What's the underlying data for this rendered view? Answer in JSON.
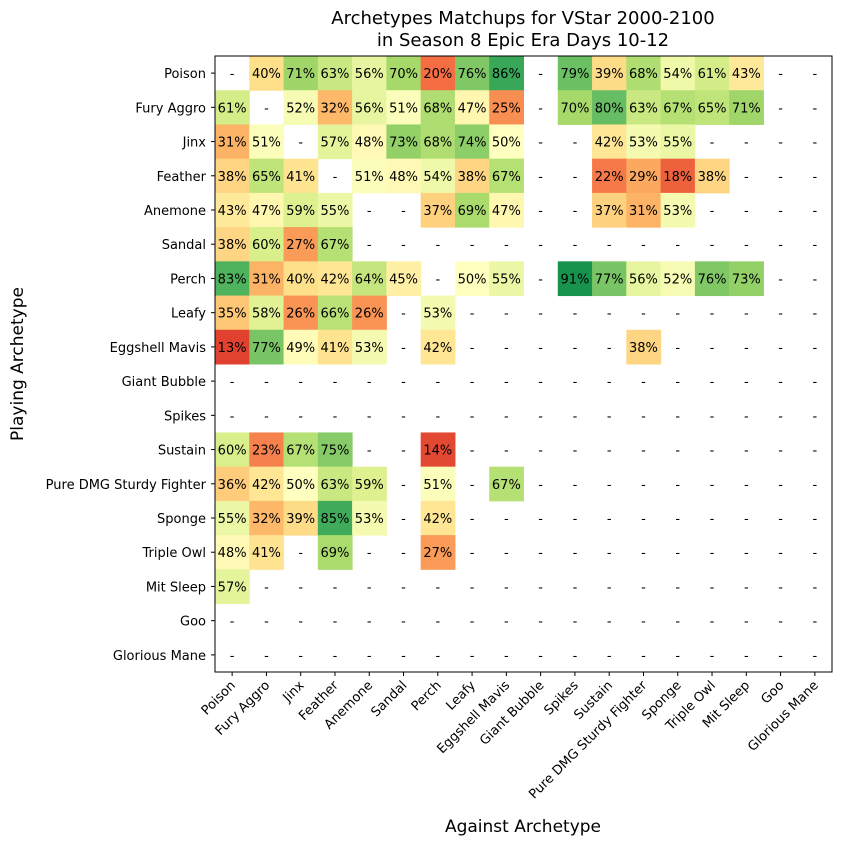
{
  "chart_data": {
    "type": "heatmap",
    "title": [
      "Archetypes Matchups for VStar 2000-2100",
      "in Season 8 Epic Era Days 10-12"
    ],
    "xlabel": "Against Archetype",
    "ylabel": "Playing Archetype",
    "categories": [
      "Poison",
      "Fury Aggro",
      "Jinx",
      "Feather",
      "Anemone",
      "Sandal",
      "Perch",
      "Leafy",
      "Eggshell Mavis",
      "Giant Bubble",
      "Spikes",
      "Sustain",
      "Pure DMG Sturdy Fighter",
      "Sponge",
      "Triple Owl",
      "Mit Sleep",
      "Goo",
      "Glorious Mane"
    ],
    "value_unit": "%",
    "missing_label": "-",
    "colormap": "RdYlGn",
    "color_range": [
      0,
      100
    ],
    "values": [
      [
        null,
        40,
        71,
        63,
        56,
        70,
        20,
        76,
        86,
        null,
        79,
        39,
        68,
        54,
        61,
        43,
        null,
        null
      ],
      [
        61,
        null,
        52,
        32,
        56,
        51,
        68,
        47,
        25,
        null,
        70,
        80,
        63,
        67,
        65,
        71,
        null,
        null
      ],
      [
        31,
        51,
        null,
        57,
        48,
        73,
        68,
        74,
        50,
        null,
        null,
        42,
        53,
        55,
        null,
        null,
        null,
        null
      ],
      [
        38,
        65,
        41,
        null,
        51,
        48,
        54,
        38,
        67,
        null,
        null,
        22,
        29,
        18,
        38,
        null,
        null,
        null
      ],
      [
        43,
        47,
        59,
        55,
        null,
        null,
        37,
        69,
        47,
        null,
        null,
        37,
        31,
        53,
        null,
        null,
        null,
        null
      ],
      [
        38,
        60,
        27,
        67,
        null,
        null,
        null,
        null,
        null,
        null,
        null,
        null,
        null,
        null,
        null,
        null,
        null,
        null
      ],
      [
        83,
        31,
        40,
        42,
        64,
        45,
        null,
        50,
        55,
        null,
        91,
        77,
        56,
        52,
        76,
        73,
        null,
        null
      ],
      [
        35,
        58,
        26,
        66,
        26,
        null,
        53,
        null,
        null,
        null,
        null,
        null,
        null,
        null,
        null,
        null,
        null,
        null
      ],
      [
        13,
        77,
        49,
        41,
        53,
        null,
        42,
        null,
        null,
        null,
        null,
        null,
        38,
        null,
        null,
        null,
        null,
        null
      ],
      [
        null,
        null,
        null,
        null,
        null,
        null,
        null,
        null,
        null,
        null,
        null,
        null,
        null,
        null,
        null,
        null,
        null,
        null
      ],
      [
        null,
        null,
        null,
        null,
        null,
        null,
        null,
        null,
        null,
        null,
        null,
        null,
        null,
        null,
        null,
        null,
        null,
        null
      ],
      [
        60,
        23,
        67,
        75,
        null,
        null,
        14,
        null,
        null,
        null,
        null,
        null,
        null,
        null,
        null,
        null,
        null,
        null
      ],
      [
        36,
        42,
        50,
        63,
        59,
        null,
        51,
        null,
        67,
        null,
        null,
        null,
        null,
        null,
        null,
        null,
        null,
        null
      ],
      [
        55,
        32,
        39,
        85,
        53,
        null,
        42,
        null,
        null,
        null,
        null,
        null,
        null,
        null,
        null,
        null,
        null,
        null
      ],
      [
        48,
        41,
        null,
        69,
        null,
        null,
        27,
        null,
        null,
        null,
        null,
        null,
        null,
        null,
        null,
        null,
        null,
        null
      ],
      [
        57,
        null,
        null,
        null,
        null,
        null,
        null,
        null,
        null,
        null,
        null,
        null,
        null,
        null,
        null,
        null,
        null,
        null
      ],
      [
        null,
        null,
        null,
        null,
        null,
        null,
        null,
        null,
        null,
        null,
        null,
        null,
        null,
        null,
        null,
        null,
        null,
        null
      ],
      [
        null,
        null,
        null,
        null,
        null,
        null,
        null,
        null,
        null,
        null,
        null,
        null,
        null,
        null,
        null,
        null,
        null,
        null
      ]
    ],
    "grid": false,
    "legend": "none"
  }
}
